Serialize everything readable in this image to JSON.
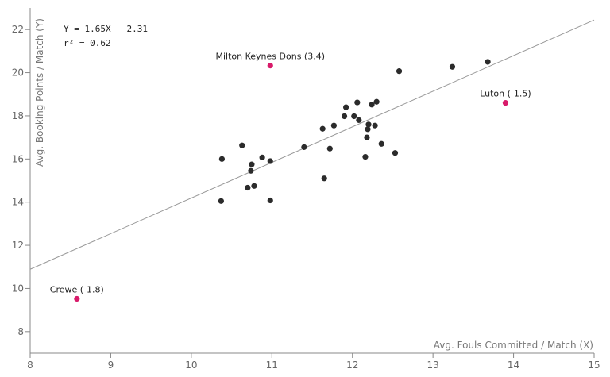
{
  "chart_data": {
    "type": "scatter",
    "title": "",
    "xlabel": "Avg. Fouls Committed / Match (X)",
    "ylabel": "Avg. Booking Points / Match (Y)",
    "xlim": [
      8,
      15
    ],
    "ylim": [
      7,
      23
    ],
    "x_ticks": [
      8,
      9,
      10,
      11,
      12,
      13,
      14,
      15
    ],
    "y_ticks": [
      8,
      10,
      12,
      14,
      16,
      18,
      20,
      22
    ],
    "grid": false,
    "equation_text": "Y = 1.65X − 2.31",
    "r2_text": "r² = 0.62",
    "regression": {
      "slope": 1.65,
      "intercept": -2.31,
      "x_range": [
        8,
        15
      ]
    },
    "colors": {
      "points": "#2b2b2b",
      "highlight": "#d81b6a",
      "line": "#999999",
      "axis": "#888888"
    },
    "points": [
      {
        "x": 10.37,
        "y": 14.05
      },
      {
        "x": 10.38,
        "y": 16.0
      },
      {
        "x": 10.63,
        "y": 16.63
      },
      {
        "x": 10.7,
        "y": 14.67
      },
      {
        "x": 10.74,
        "y": 15.45
      },
      {
        "x": 10.75,
        "y": 15.75
      },
      {
        "x": 10.78,
        "y": 14.75
      },
      {
        "x": 10.88,
        "y": 16.07
      },
      {
        "x": 10.98,
        "y": 14.08
      },
      {
        "x": 10.98,
        "y": 15.9
      },
      {
        "x": 11.4,
        "y": 16.55
      },
      {
        "x": 11.63,
        "y": 17.4
      },
      {
        "x": 11.65,
        "y": 15.1
      },
      {
        "x": 11.72,
        "y": 16.48
      },
      {
        "x": 11.77,
        "y": 17.55
      },
      {
        "x": 11.9,
        "y": 17.98
      },
      {
        "x": 11.92,
        "y": 18.4
      },
      {
        "x": 12.02,
        "y": 17.98
      },
      {
        "x": 12.06,
        "y": 18.62
      },
      {
        "x": 12.08,
        "y": 17.8
      },
      {
        "x": 12.16,
        "y": 16.1
      },
      {
        "x": 12.18,
        "y": 17.0
      },
      {
        "x": 12.19,
        "y": 17.38
      },
      {
        "x": 12.2,
        "y": 17.6
      },
      {
        "x": 12.24,
        "y": 18.52
      },
      {
        "x": 12.28,
        "y": 17.55
      },
      {
        "x": 12.3,
        "y": 18.65
      },
      {
        "x": 12.36,
        "y": 16.7
      },
      {
        "x": 12.53,
        "y": 16.28
      },
      {
        "x": 12.58,
        "y": 20.07
      },
      {
        "x": 13.24,
        "y": 20.27
      },
      {
        "x": 13.68,
        "y": 20.5
      }
    ],
    "highlighted": [
      {
        "label": "Milton Keynes Dons (3.4)",
        "x": 10.98,
        "y": 20.33
      },
      {
        "label": "Luton (-1.5)",
        "x": 13.9,
        "y": 18.6
      },
      {
        "label": "Crewe (-1.8)",
        "x": 8.58,
        "y": 9.52
      }
    ]
  }
}
